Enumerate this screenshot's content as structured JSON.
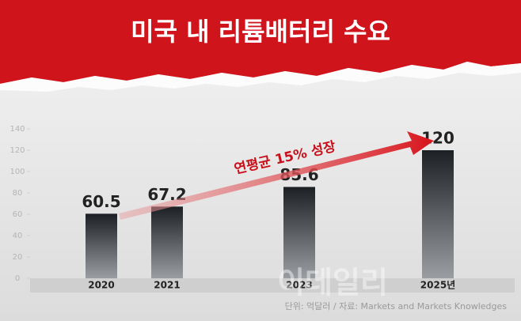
{
  "chart_data": {
    "type": "bar",
    "title": "미국 내 리튬배터리 수요",
    "categories": [
      "2020",
      "2021",
      "2023",
      "2025년"
    ],
    "values": [
      60.5,
      67.2,
      85.6,
      120
    ],
    "ylim": [
      0,
      140
    ],
    "yticks": [
      0,
      20,
      40,
      60,
      80,
      100,
      120,
      140
    ],
    "annotation": "연평균 15% 성장",
    "source": "단위: 억달러 / 자료: Markets and Markets Knowledges",
    "watermark": "이데일리",
    "color": "#1f2328"
  }
}
